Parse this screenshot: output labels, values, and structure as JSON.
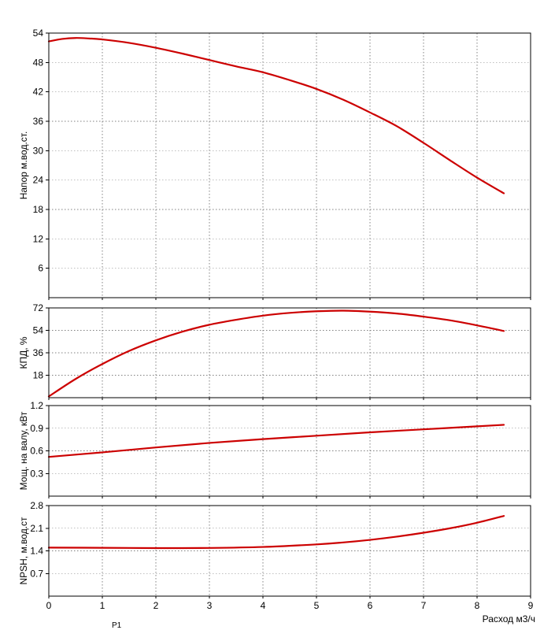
{
  "chart_data": [
    {
      "type": "line",
      "ylabel": "Напор м.вод.ст.",
      "ylim": [
        0,
        54
      ],
      "yticks": [
        6,
        12,
        18,
        24,
        30,
        36,
        42,
        48,
        54
      ],
      "xlim": [
        0,
        9
      ],
      "grid": true,
      "color": "#cc0000",
      "series": [
        {
          "x": [
            0,
            0.25,
            0.5,
            0.75,
            1,
            1.5,
            2,
            2.5,
            3,
            3.5,
            4,
            4.5,
            5,
            5.5,
            6,
            6.5,
            7,
            7.5,
            8,
            8.5
          ],
          "y": [
            52.3,
            52.8,
            53.0,
            52.9,
            52.7,
            52.0,
            51.0,
            49.8,
            48.5,
            47.2,
            46.0,
            44.4,
            42.6,
            40.4,
            37.8,
            35.0,
            31.6,
            28.0,
            24.5,
            21.3
          ]
        }
      ]
    },
    {
      "type": "line",
      "ylabel": "КПД, %",
      "ylim": [
        0,
        72
      ],
      "yticks": [
        18,
        36,
        54,
        72
      ],
      "xlim": [
        0,
        9
      ],
      "grid": true,
      "color": "#cc0000",
      "series": [
        {
          "x": [
            0,
            0.5,
            1,
            1.5,
            2,
            2.5,
            3,
            3.5,
            4,
            4.5,
            5,
            5.5,
            6,
            6.5,
            7,
            7.5,
            8,
            8.5
          ],
          "y": [
            1.0,
            15.0,
            27.0,
            37.5,
            46.0,
            53.0,
            58.5,
            62.5,
            65.8,
            68.0,
            69.3,
            69.8,
            69.0,
            67.5,
            65.0,
            62.0,
            58.0,
            53.5
          ]
        }
      ]
    },
    {
      "type": "line",
      "ylabel": "Мощ. на валу, кВт",
      "ylim": [
        0,
        1.2
      ],
      "yticks": [
        0.3,
        0.6,
        0.9,
        1.2
      ],
      "xlim": [
        0,
        9
      ],
      "grid": true,
      "color": "#cc0000",
      "series": [
        {
          "x": [
            0,
            1,
            2,
            3,
            4,
            5,
            6,
            7,
            8,
            8.5
          ],
          "y": [
            0.52,
            0.58,
            0.645,
            0.705,
            0.755,
            0.8,
            0.845,
            0.885,
            0.925,
            0.945
          ]
        }
      ]
    },
    {
      "type": "line",
      "ylabel": "NPSH, м.вод.ст",
      "ylim": [
        0,
        2.8
      ],
      "yticks": [
        0.7,
        1.4,
        2.1,
        2.8
      ],
      "xlim": [
        0,
        9
      ],
      "xticks": [
        0,
        1,
        2,
        3,
        4,
        5,
        6,
        7,
        8,
        9
      ],
      "xlabel": "Расход м3/ч",
      "grid": true,
      "color": "#cc0000",
      "series": [
        {
          "x": [
            0,
            1,
            2,
            3,
            4,
            5,
            5.5,
            6,
            6.5,
            7,
            7.5,
            8,
            8.5
          ],
          "y": [
            1.5,
            1.495,
            1.485,
            1.49,
            1.52,
            1.6,
            1.66,
            1.74,
            1.84,
            1.96,
            2.1,
            2.27,
            2.48
          ]
        }
      ]
    }
  ],
  "footer_note": "P1"
}
